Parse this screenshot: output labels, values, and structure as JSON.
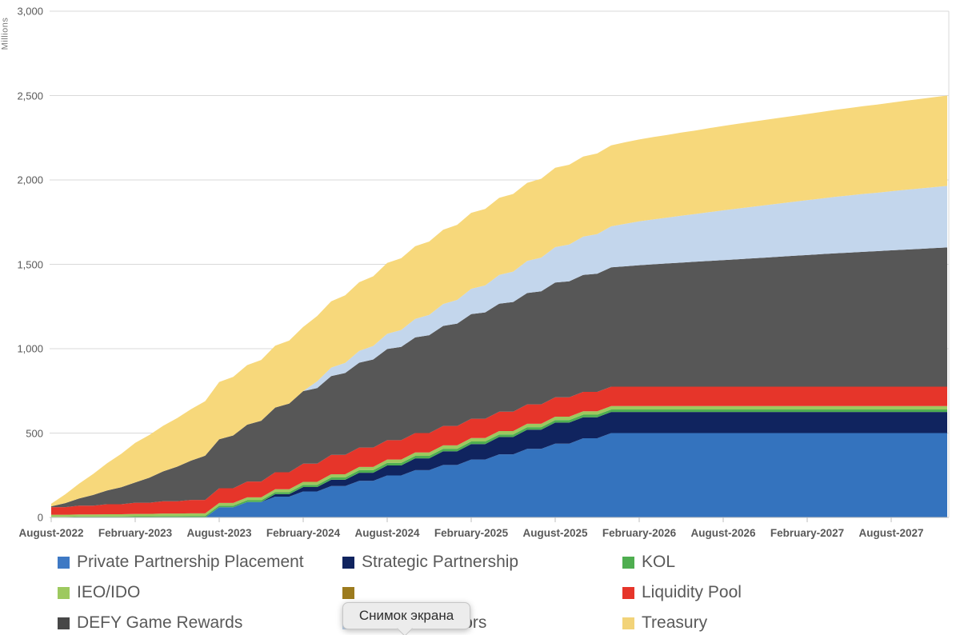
{
  "axis": {
    "y_unit_label": "Millions",
    "y_ticks": [
      "0",
      "500",
      "1,000",
      "1,500",
      "2,000",
      "2,500",
      "3,000"
    ],
    "y_tick_values": [
      0,
      500,
      1000,
      1500,
      2000,
      2500,
      3000
    ],
    "y_max": 3000,
    "x_ticks": [
      "August-2022",
      "February-2023",
      "August-2023",
      "February-2024",
      "August-2024",
      "February-2025",
      "August-2025",
      "February-2026",
      "August-2026",
      "February-2027",
      "August-2027"
    ],
    "x_tick_month_index": [
      0,
      6,
      12,
      18,
      24,
      30,
      36,
      42,
      48,
      54,
      60
    ]
  },
  "colors": {
    "grid": "#d9d9d9",
    "tick": "#bfbfbf",
    "axis_text": "#595959"
  },
  "tooltip": {
    "text": "Снимок экрана"
  },
  "legend": {
    "rows": 3,
    "cols": 3,
    "items": [
      {
        "label": "Private Partnership Placement",
        "color": "#3e79c4",
        "row": 0,
        "col": 0
      },
      {
        "label": "Strategic Partnership",
        "color": "#10245f",
        "row": 0,
        "col": 1
      },
      {
        "label": "KOL",
        "color": "#4fae50",
        "row": 0,
        "col": 2
      },
      {
        "label": "IEO/IDO",
        "color": "#9dc95f",
        "row": 1,
        "col": 0
      },
      {
        "label": "",
        "color": "#9c7b1e",
        "row": 1,
        "col": 1
      },
      {
        "label": "Liquidity Pool",
        "color": "#e6352a",
        "row": 1,
        "col": 2
      },
      {
        "label": "DEFY Game Rewards",
        "color": "#474747",
        "row": 2,
        "col": 0
      },
      {
        "label": "Team & Advisors",
        "color": "#c3d6ec",
        "row": 2,
        "col": 1
      },
      {
        "label": "Treasury",
        "color": "#f2d379",
        "row": 2,
        "col": 2
      }
    ]
  },
  "chart_data": {
    "type": "area",
    "stacked": true,
    "title": "",
    "xlabel": "",
    "ylabel": "Millions",
    "ylim": [
      0,
      3000
    ],
    "grid": "horizontal",
    "legend_position": "bottom",
    "x_start_month": "August-2022",
    "x_end_month": "December-2027",
    "x_months_count": 65,
    "total_at_end": 2500,
    "series": [
      {
        "name": "Private Partnership Placement",
        "color": "#3473be",
        "final": 500,
        "values": [
          0,
          0,
          0,
          0,
          0,
          0,
          0,
          0,
          0,
          0,
          0,
          0,
          60,
          60,
          91,
          91,
          123,
          123,
          154,
          154,
          186,
          186,
          217,
          217,
          249,
          249,
          280,
          280,
          311,
          311,
          343,
          343,
          374,
          374,
          406,
          406,
          437,
          437,
          469,
          469,
          500,
          500,
          500,
          500,
          500,
          500,
          500,
          500,
          500,
          500,
          500,
          500,
          500,
          500,
          500,
          500,
          500,
          500,
          500,
          500,
          500,
          500,
          500,
          500,
          500
        ]
      },
      {
        "name": "Strategic Partnership",
        "color": "#10245f",
        "final": 125,
        "values": [
          0,
          0,
          0,
          0,
          0,
          0,
          0,
          0,
          0,
          0,
          0,
          0,
          0,
          0,
          0,
          0,
          15,
          15,
          26,
          26,
          37,
          37,
          48,
          48,
          59,
          59,
          70,
          70,
          81,
          81,
          92,
          92,
          103,
          103,
          114,
          114,
          125,
          125,
          125,
          125,
          125,
          125,
          125,
          125,
          125,
          125,
          125,
          125,
          125,
          125,
          125,
          125,
          125,
          125,
          125,
          125,
          125,
          125,
          125,
          125,
          125,
          125,
          125,
          125,
          125
        ]
      },
      {
        "name": "KOL",
        "color": "#4fae50",
        "final": 15,
        "values": [
          4,
          4,
          5,
          5,
          6,
          6,
          7,
          7,
          8,
          8,
          9,
          9,
          10,
          10,
          11,
          11,
          12,
          12,
          13,
          13,
          14,
          14,
          15,
          15,
          15,
          15,
          15,
          15,
          15,
          15,
          15,
          15,
          15,
          15,
          15,
          15,
          15,
          15,
          15,
          15,
          15,
          15,
          15,
          15,
          15,
          15,
          15,
          15,
          15,
          15,
          15,
          15,
          15,
          15,
          15,
          15,
          15,
          15,
          15,
          15,
          15,
          15,
          15,
          15,
          15
        ]
      },
      {
        "name": "IEO/IDO",
        "color": "#9dc95f",
        "final": 20,
        "values": [
          12,
          12,
          13,
          13,
          13,
          13,
          14,
          14,
          15,
          15,
          15,
          15,
          16,
          16,
          17,
          17,
          17,
          17,
          18,
          18,
          19,
          19,
          19,
          19,
          20,
          20,
          20,
          20,
          20,
          20,
          20,
          20,
          20,
          20,
          20,
          20,
          20,
          20,
          20,
          20,
          20,
          20,
          20,
          20,
          20,
          20,
          20,
          20,
          20,
          20,
          20,
          20,
          20,
          20,
          20,
          20,
          20,
          20,
          20,
          20,
          20,
          20,
          20,
          20,
          20
        ]
      },
      {
        "name": "",
        "color": "#9c7b1e",
        "final": 0,
        "values": [
          0,
          0,
          0,
          0,
          0,
          0,
          0,
          0,
          0,
          0,
          0,
          0,
          0,
          0,
          0,
          0,
          0,
          0,
          0,
          0,
          0,
          0,
          0,
          0,
          0,
          0,
          0,
          0,
          0,
          0,
          0,
          0,
          0,
          0,
          0,
          0,
          0,
          0,
          0,
          0,
          0,
          0,
          0,
          0,
          0,
          0,
          0,
          0,
          0,
          0,
          0,
          0,
          0,
          0,
          0,
          0,
          0,
          0,
          0,
          0,
          0,
          0,
          0,
          0,
          0
        ]
      },
      {
        "name": "Liquidity Pool",
        "color": "#e6352a",
        "final": 115,
        "values": [
          45,
          45,
          52,
          52,
          59,
          59,
          66,
          66,
          73,
          73,
          80,
          80,
          87,
          87,
          94,
          94,
          101,
          101,
          108,
          108,
          115,
          115,
          115,
          115,
          115,
          115,
          115,
          115,
          115,
          115,
          115,
          115,
          115,
          115,
          115,
          115,
          115,
          115,
          115,
          115,
          115,
          115,
          115,
          115,
          115,
          115,
          115,
          115,
          115,
          115,
          115,
          115,
          115,
          115,
          115,
          115,
          115,
          115,
          115,
          115,
          115,
          115,
          115,
          115,
          115
        ]
      },
      {
        "name": "DEFY Game Rewards",
        "color": "#575757",
        "final": 825,
        "values": [
          5,
          24,
          43,
          63,
          82,
          101,
          120,
          148,
          177,
          205,
          233,
          262,
          290,
          313,
          337,
          360,
          383,
          407,
          430,
          448,
          467,
          485,
          503,
          522,
          540,
          553,
          567,
          580,
          593,
          607,
          620,
          630,
          640,
          650,
          660,
          670,
          680,
          687,
          693,
          700,
          707,
          713,
          720,
          725,
          730,
          735,
          740,
          745,
          750,
          755,
          760,
          765,
          770,
          775,
          780,
          785,
          790,
          794,
          799,
          803,
          808,
          812,
          816,
          821,
          825
        ]
      },
      {
        "name": "Team & Advisors",
        "color": "#c3d6ec",
        "final": 365,
        "values": [
          0,
          0,
          0,
          0,
          0,
          0,
          0,
          0,
          0,
          0,
          0,
          0,
          0,
          0,
          0,
          0,
          0,
          0,
          0,
          40,
          50,
          60,
          70,
          80,
          90,
          100,
          110,
          120,
          130,
          140,
          150,
          160,
          170,
          180,
          190,
          200,
          210,
          218,
          227,
          235,
          243,
          252,
          260,
          266,
          272,
          278,
          283,
          289,
          295,
          300,
          305,
          310,
          315,
          320,
          325,
          330,
          335,
          339,
          343,
          346,
          350,
          354,
          358,
          361,
          365
        ]
      },
      {
        "name": "Treasury",
        "color": "#f7d87b",
        "final": 535,
        "values": [
          15,
          52,
          88,
          125,
          162,
          198,
          235,
          253,
          270,
          288,
          305,
          323,
          340,
          347,
          353,
          360,
          367,
          373,
          380,
          387,
          393,
          400,
          407,
          413,
          420,
          425,
          430,
          435,
          440,
          445,
          450,
          453,
          457,
          460,
          463,
          467,
          470,
          473,
          475,
          478,
          480,
          483,
          485,
          488,
          490,
          493,
          495,
          498,
          500,
          502,
          504,
          506,
          508,
          509,
          511,
          513,
          515,
          518,
          520,
          523,
          525,
          528,
          530,
          533,
          535
        ]
      }
    ]
  }
}
